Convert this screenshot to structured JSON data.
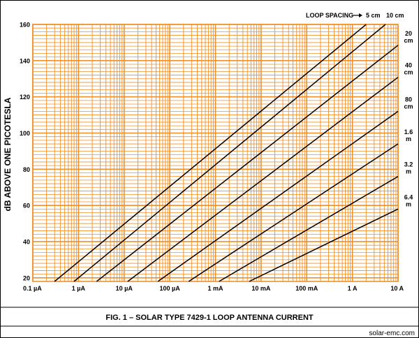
{
  "figure": {
    "caption": "FIG. 1 –  SOLAR TYPE 7429-1 LOOP ANTENNA CURRENT",
    "credit": "solar-emc.com"
  },
  "chart_data": {
    "type": "line",
    "title": "",
    "xlabel": "",
    "ylabel": "dB ABOVE ONE PICOTESLA",
    "xscale": "log",
    "xlim": [
      0.1,
      10000000
    ],
    "xlim_unit": "µA",
    "ylim": [
      18,
      160
    ],
    "grid": true,
    "grid_color": "#f0902a",
    "line_color": "#000000",
    "x_ticks": [
      {
        "value": 0.1,
        "label": "0.1 µA"
      },
      {
        "value": 1,
        "label": "1 µA"
      },
      {
        "value": 10,
        "label": "10 µA"
      },
      {
        "value": 100,
        "label": "100 µA"
      },
      {
        "value": 1000,
        "label": "1 mA"
      },
      {
        "value": 10000,
        "label": "10 mA"
      },
      {
        "value": 100000,
        "label": "100 mA"
      },
      {
        "value": 1000000,
        "label": "1 A"
      },
      {
        "value": 10000000,
        "label": "10 A"
      }
    ],
    "y_ticks": [
      20,
      40,
      60,
      80,
      100,
      120,
      140,
      160
    ],
    "legend_title": "LOOP SPACING",
    "series": [
      {
        "name": "5 cm",
        "label_lines": [
          "5 cm"
        ],
        "points": [
          [
            0.3,
            18
          ],
          [
            2000000,
            160
          ]
        ]
      },
      {
        "name": "10 cm",
        "label_lines": [
          "10 cm"
        ],
        "points": [
          [
            0.8,
            18
          ],
          [
            5300000,
            160
          ]
        ]
      },
      {
        "name": "20 cm",
        "label_lines": [
          "20",
          "cm"
        ],
        "points": [
          [
            2.5,
            18
          ],
          [
            10000000,
            148.5
          ]
        ]
      },
      {
        "name": "40 cm",
        "label_lines": [
          "40",
          "cm"
        ],
        "points": [
          [
            12,
            18
          ],
          [
            10000000,
            130.8
          ]
        ]
      },
      {
        "name": "80 cm",
        "label_lines": [
          "80",
          "cm"
        ],
        "points": [
          [
            55,
            18
          ],
          [
            10000000,
            112
          ]
        ]
      },
      {
        "name": "1.6 m",
        "label_lines": [
          "1.6",
          "m"
        ],
        "points": [
          [
            260,
            18
          ],
          [
            10000000,
            94
          ]
        ]
      },
      {
        "name": "3.2 m",
        "label_lines": [
          "3.2",
          "m"
        ],
        "points": [
          [
            1200,
            18
          ],
          [
            10000000,
            76
          ]
        ]
      },
      {
        "name": "6.4 m",
        "label_lines": [
          "6.4",
          "m"
        ],
        "points": [
          [
            5500,
            18
          ],
          [
            10000000,
            58
          ]
        ]
      }
    ]
  }
}
